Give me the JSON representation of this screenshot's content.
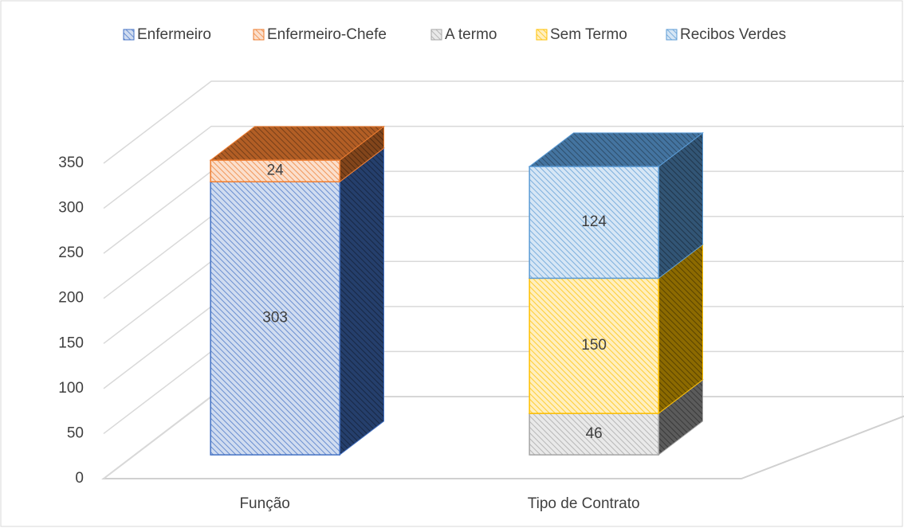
{
  "chart_data": {
    "type": "bar3d_stacked",
    "categories": [
      "Função",
      "Tipo de Contrato"
    ],
    "series": [
      {
        "name": "Enfermeiro",
        "color": "#4472c4",
        "values": [
          303,
          null
        ]
      },
      {
        "name": "Enfermeiro-Chefe",
        "color": "#ed7d31",
        "values": [
          24,
          null
        ]
      },
      {
        "name": "A termo",
        "color": "#a5a5a5",
        "values": [
          null,
          46
        ]
      },
      {
        "name": "Sem Termo",
        "color": "#ffc000",
        "values": [
          null,
          150
        ]
      },
      {
        "name": "Recibos Verdes",
        "color": "#5b9bd5",
        "values": [
          null,
          124
        ]
      }
    ],
    "ylim": [
      0,
      350
    ],
    "yticks": [
      0,
      50,
      100,
      150,
      200,
      250,
      300,
      350
    ],
    "grid": true,
    "legend": "top"
  }
}
